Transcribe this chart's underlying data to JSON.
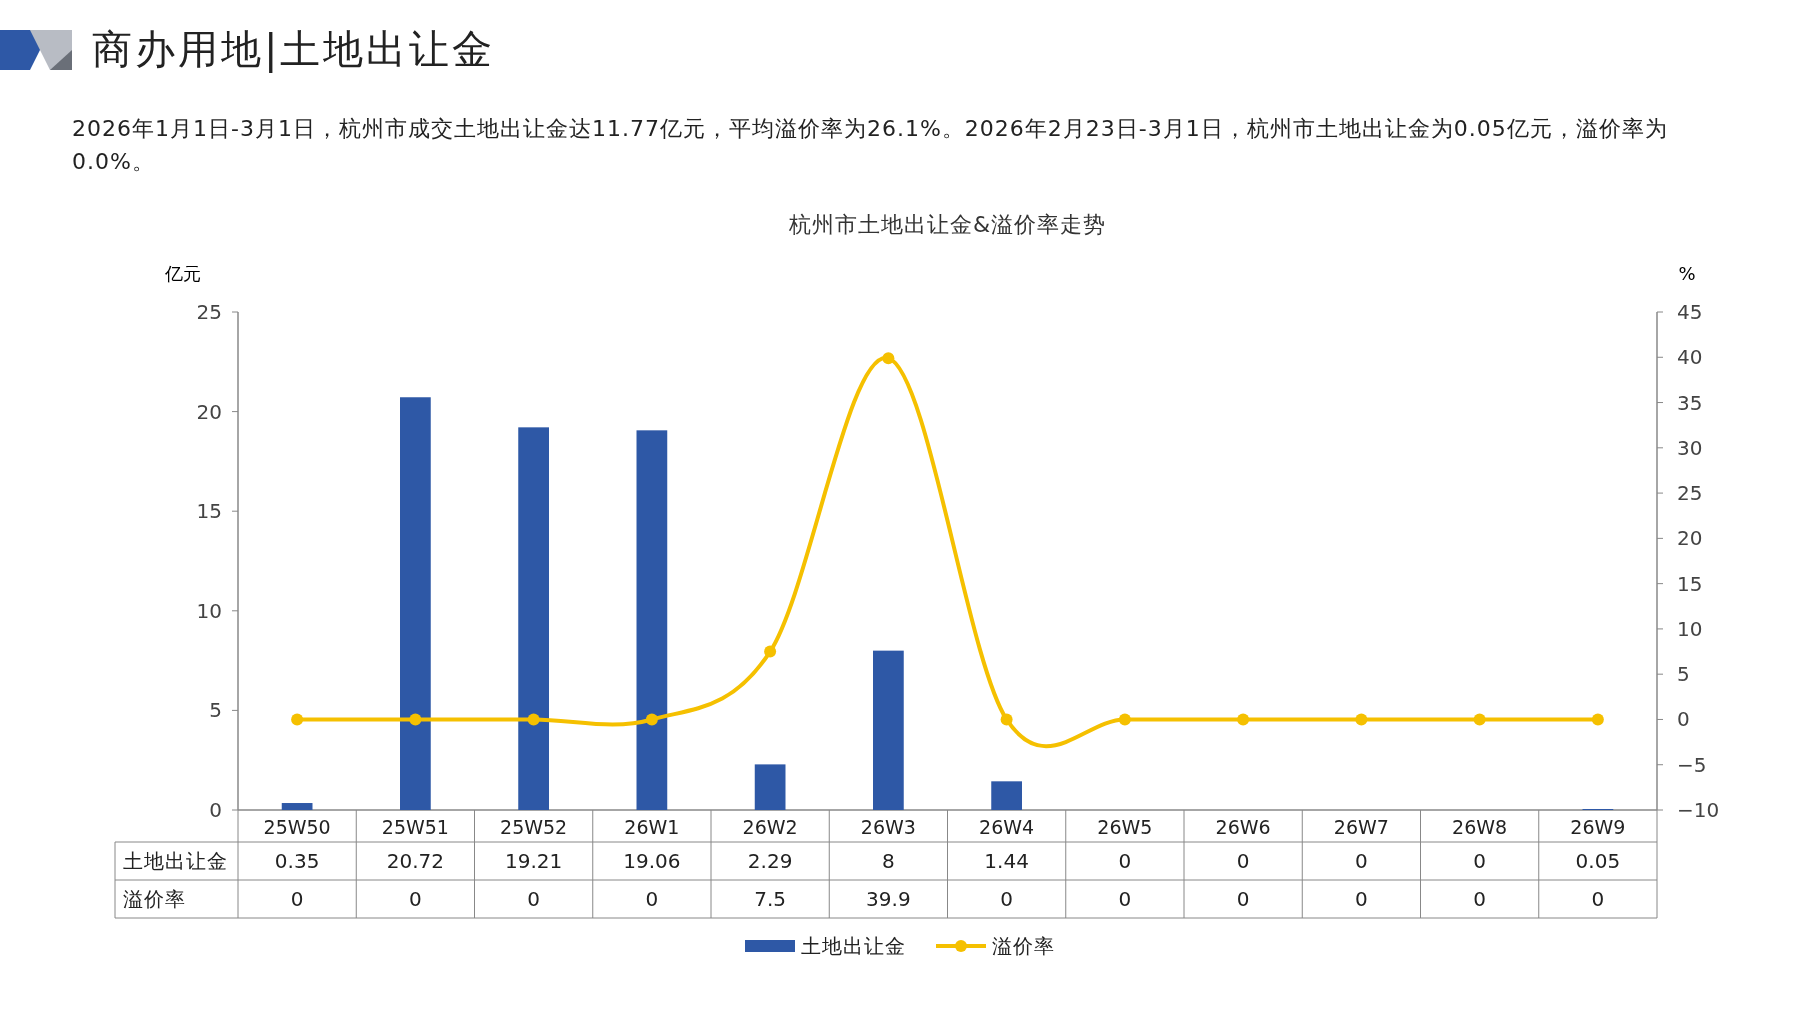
{
  "chart_data": {
    "type": "bar",
    "title": "杭州市土地出让金&溢价率走势",
    "annotations": [
      "商办用地|土地出让金",
      "2026年1月1日-3月1日，杭州市成交土地出让金达11.77亿元，平均溢价率为26.1%。2026年2月23日-3月1日，杭州市土地出让金为0.05亿元，溢价率为0.0%。"
    ],
    "ylabel": "亿元",
    "y2label": "%",
    "categories": [
      "25W50",
      "25W51",
      "25W52",
      "26W1",
      "26W2",
      "26W3",
      "26W4",
      "26W5",
      "26W6",
      "26W7",
      "26W8",
      "26W9"
    ],
    "series": [
      {
        "name": "土地出让金",
        "color": "#2e58a6",
        "values": [
          0.35,
          20.72,
          19.21,
          19.06,
          2.29,
          8,
          1.44,
          0,
          0,
          0,
          0,
          0.05
        ]
      },
      {
        "name": "溢价率",
        "type": "line",
        "axis": "y2",
        "color": "#f5c000",
        "marker": "circle",
        "values": [
          0,
          0,
          0,
          0,
          7.5,
          39.9,
          0,
          0,
          0,
          0,
          0,
          0
        ]
      }
    ],
    "ylim": [
      0,
      25
    ],
    "yticks": [
      0,
      5,
      10,
      15,
      20,
      25
    ],
    "y2lim": [
      -10,
      45
    ],
    "y2ticks": [
      -10,
      -5,
      0,
      5,
      10,
      15,
      20,
      25,
      30,
      35,
      40,
      45
    ],
    "data_labels": true,
    "grid": false,
    "legend": "bottom"
  }
}
